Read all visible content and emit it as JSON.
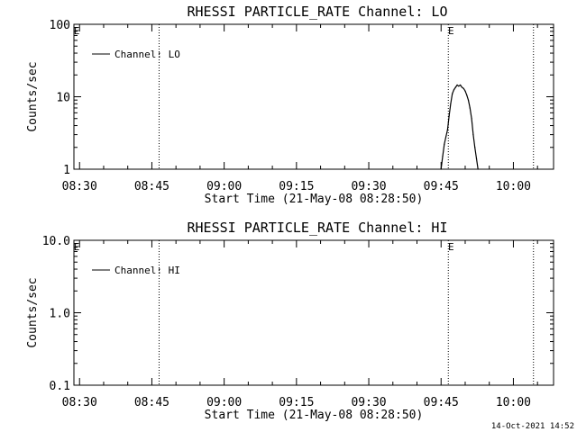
{
  "footer": {
    "timestamp": "14-Oct-2021 14:52"
  },
  "chart_data": [
    {
      "type": "line",
      "title": "RHESSI PARTICLE_RATE Channel: LO",
      "xlabel": "Start Time (21-May-08 08:28:50)",
      "ylabel": "Counts/sec",
      "yscale": "log",
      "ylim": [
        1,
        100
      ],
      "xlim": [
        "08:28:50",
        "10:08:20"
      ],
      "x_ticks": [
        "08:30",
        "08:45",
        "09:00",
        "09:15",
        "09:30",
        "09:45",
        "10:00"
      ],
      "y_ticks": [
        "1",
        "10",
        "100"
      ],
      "legend": {
        "label": "Channel: LO",
        "placement": "top-left"
      },
      "markers": [
        {
          "time": "08:28:50",
          "label": "E"
        },
        {
          "time": "08:46:30",
          "label": ""
        },
        {
          "time": "09:46:30",
          "label": "E"
        },
        {
          "time": "10:04:10",
          "label": ""
        }
      ],
      "series": [
        {
          "x": [
            "09:45:00",
            "09:45:20",
            "09:45:40",
            "09:46:00",
            "09:46:20",
            "09:46:40",
            "09:47:00",
            "09:47:20",
            "09:47:40",
            "09:48:00",
            "09:48:20",
            "09:48:40",
            "09:49:00",
            "09:49:20",
            "09:49:40",
            "09:50:00",
            "09:50:20",
            "09:50:40",
            "09:51:00",
            "09:51:20",
            "09:51:40",
            "09:52:00",
            "09:52:20",
            "09:52:40"
          ],
          "y": [
            1.0,
            1.5,
            2.2,
            2.8,
            3.5,
            5.5,
            8.0,
            11.0,
            12.5,
            13.5,
            14.5,
            14.0,
            14.5,
            13.5,
            13.0,
            12.0,
            10.5,
            9.0,
            7.0,
            5.0,
            3.0,
            2.0,
            1.4,
            1.0
          ]
        }
      ]
    },
    {
      "type": "line",
      "title": "RHESSI PARTICLE_RATE Channel: HI",
      "xlabel": "Start Time (21-May-08 08:28:50)",
      "ylabel": "Counts/sec",
      "yscale": "log",
      "ylim": [
        0.1,
        10
      ],
      "xlim": [
        "08:28:50",
        "10:08:20"
      ],
      "x_ticks": [
        "08:30",
        "08:45",
        "09:00",
        "09:15",
        "09:30",
        "09:45",
        "10:00"
      ],
      "y_ticks": [
        "0.1",
        "1.0",
        "10.0"
      ],
      "legend": {
        "label": "Channel: HI",
        "placement": "top-left"
      },
      "markers": [
        {
          "time": "08:28:50",
          "label": "E"
        },
        {
          "time": "08:46:30",
          "label": ""
        },
        {
          "time": "09:46:30",
          "label": "E"
        },
        {
          "time": "10:04:10",
          "label": ""
        }
      ],
      "series": [
        {
          "x": [],
          "y": []
        }
      ]
    }
  ]
}
